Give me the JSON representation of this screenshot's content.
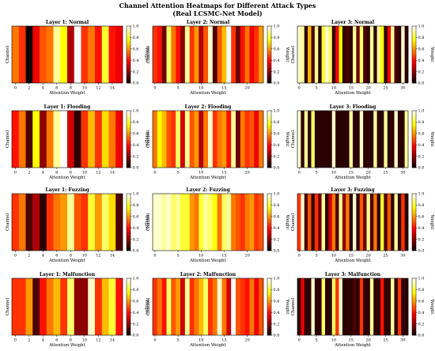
{
  "title": "Channel Attention Heatmaps for Different Attack Types",
  "subtitle": "(Real LCSMC-Net Model)",
  "chart_data": [
    {
      "type": "heatmap",
      "title": "Layer 1: Normal",
      "xlabel": "Attention Weight",
      "ylabel": "Channel",
      "colorbar_label": "Weight",
      "colormap": "hot",
      "vlim": [
        0,
        1
      ],
      "x_ticks": [
        0,
        2,
        4,
        6,
        8,
        10,
        12,
        14
      ],
      "colorbar_ticks": [
        "0.0",
        "0.2",
        "0.4",
        "0.6",
        "0.8",
        "1.0"
      ],
      "values": [
        0.55,
        0.45,
        0.0,
        0.35,
        0.5,
        0.55,
        0.9,
        0.75,
        0.25,
        1.0,
        0.45,
        0.55,
        0.4,
        0.8,
        0.4,
        0.35
      ]
    },
    {
      "type": "heatmap",
      "title": "Layer 2: Normal",
      "xlabel": "Attention Weight",
      "ylabel": "Channel",
      "colorbar_label": "Weight",
      "colormap": "hot",
      "vlim": [
        0,
        1
      ],
      "x_ticks": [
        0,
        5,
        10,
        15,
        20
      ],
      "colorbar_ticks": [
        "0.0",
        "0.2",
        "0.4",
        "0.6",
        "0.8",
        "1.0"
      ],
      "values": [
        0.45,
        0.4,
        0.15,
        0.85,
        0.55,
        0.4,
        0.2,
        0.9,
        0.45,
        0.6,
        0.25,
        0.5,
        0.95,
        0.1,
        0.5,
        0.65,
        1.0,
        0.45,
        0.15,
        0.4,
        0.55,
        0.35,
        0.45,
        0.6
      ]
    },
    {
      "type": "heatmap",
      "title": "Layer 3: Normal",
      "xlabel": "Attention Weight",
      "ylabel": "Channel",
      "colorbar_label": "Weight",
      "colormap": "hot",
      "vlim": [
        0,
        1
      ],
      "x_ticks": [
        0,
        5,
        10,
        15,
        20,
        25,
        30
      ],
      "colorbar_ticks": [
        "0.0",
        "0.2",
        "0.4",
        "0.6",
        "0.8",
        "1.0"
      ],
      "values": [
        0.95,
        0.9,
        0.05,
        0.65,
        0.1,
        0.9,
        0.05,
        0.8,
        0.95,
        0.85,
        0.05,
        0.35,
        0.75,
        0.05,
        0.1,
        0.05,
        0.9,
        0.15,
        0.85,
        0.1,
        0.05,
        0.9,
        0.05,
        0.9,
        0.75,
        0.05,
        0.35,
        0.9,
        0.1,
        0.05,
        0.95,
        0.05
      ]
    },
    {
      "type": "heatmap",
      "title": "Layer 1: Flooding",
      "xlabel": "Attention Weight",
      "ylabel": "Channel",
      "colorbar_label": "Weight",
      "colormap": "hot",
      "vlim": [
        0,
        1
      ],
      "x_ticks": [
        0,
        2,
        4,
        6,
        8,
        10,
        12,
        14
      ],
      "colorbar_ticks": [
        "0.0",
        "0.2",
        "0.4",
        "0.6",
        "0.8",
        "1.0"
      ],
      "values": [
        0.4,
        0.55,
        0.1,
        0.75,
        0.2,
        0.55,
        0.9,
        1.0,
        0.3,
        0.05,
        0.45,
        0.65,
        0.45,
        0.7,
        0.55,
        0.35
      ]
    },
    {
      "type": "heatmap",
      "title": "Layer 2: Flooding",
      "xlabel": "Attention Weight",
      "ylabel": "Channel",
      "colorbar_label": "Weight",
      "colormap": "hot",
      "vlim": [
        0,
        1
      ],
      "x_ticks": [
        0,
        5,
        10,
        15,
        20
      ],
      "colorbar_ticks": [
        "0.0",
        "0.2",
        "0.4",
        "0.6",
        "0.8",
        "1.0"
      ],
      "values": [
        0.55,
        0.75,
        0.65,
        0.5,
        0.45,
        0.85,
        0.3,
        0.9,
        0.5,
        0.6,
        0.25,
        0.55,
        0.95,
        0.45,
        0.55,
        0.6,
        0.4,
        0.9,
        0.15,
        0.55,
        0.45,
        0.5,
        0.35,
        0.55
      ]
    },
    {
      "type": "heatmap",
      "title": "Layer 3: Flooding",
      "xlabel": "Attention Weight",
      "ylabel": "Channel",
      "colorbar_label": "Weight",
      "colormap": "hot",
      "vlim": [
        0,
        1
      ],
      "x_ticks": [
        0,
        5,
        10,
        15,
        20,
        25,
        30
      ],
      "colorbar_ticks": [
        "0.0",
        "0.2",
        "0.4",
        "0.6",
        "0.8",
        "1.0"
      ],
      "values": [
        0.95,
        0.05,
        0.9,
        0.05,
        0.85,
        0.05,
        0.05,
        0.05,
        0.05,
        0.05,
        0.95,
        0.05,
        0.05,
        0.05,
        0.05,
        0.9,
        0.05,
        0.05,
        0.95,
        0.05,
        0.05,
        0.05,
        0.9,
        0.05,
        0.05,
        0.9,
        0.05,
        0.05,
        0.95,
        0.05,
        0.05,
        0.9
      ]
    },
    {
      "type": "heatmap",
      "title": "Layer 1: Fuzzing",
      "xlabel": "Attention Weight",
      "ylabel": "Channel",
      "colorbar_label": "Weight",
      "colormap": "hot",
      "vlim": [
        0,
        1
      ],
      "x_ticks": [
        0,
        2,
        4,
        6,
        8,
        10,
        12,
        14
      ],
      "colorbar_ticks": [
        "0.0",
        "0.2",
        "0.4",
        "0.6",
        "0.8",
        "1.0"
      ],
      "values": [
        0.45,
        0.55,
        0.1,
        0.25,
        0.05,
        0.45,
        0.55,
        0.6,
        0.9,
        0.5,
        0.45,
        0.8,
        0.6,
        0.85,
        0.7,
        0.1
      ]
    },
    {
      "type": "heatmap",
      "title": "Layer 2: Fuzzing",
      "xlabel": "Attention Weight",
      "ylabel": "Channel",
      "colorbar_label": "Weight",
      "colormap": "hot",
      "vlim": [
        0,
        1
      ],
      "x_ticks": [
        0,
        5,
        10,
        15,
        20
      ],
      "colorbar_ticks": [
        "0.0",
        "0.2",
        "0.4",
        "0.6",
        "0.8",
        "1.0"
      ],
      "values": [
        0.95,
        0.95,
        0.9,
        0.95,
        0.85,
        0.9,
        0.8,
        0.8,
        0.6,
        0.55,
        0.8,
        0.9,
        0.85,
        0.75,
        0.55,
        0.85,
        0.9,
        0.55,
        0.5,
        0.45,
        0.55,
        0.6,
        0.45,
        0.5
      ]
    },
    {
      "type": "heatmap",
      "title": "Layer 3: Fuzzing",
      "xlabel": "Attention Weight",
      "ylabel": "Channel",
      "colorbar_label": "Weight",
      "colormap": "hot",
      "vlim": [
        0,
        1
      ],
      "x_ticks": [
        0,
        5,
        10,
        15,
        20,
        25,
        30
      ],
      "colorbar_ticks": [
        "0.0",
        "0.2",
        "0.4",
        "0.6",
        "0.8",
        "1.0"
      ],
      "values": [
        0.45,
        0.95,
        0.1,
        0.5,
        0.05,
        0.45,
        0.15,
        0.9,
        0.05,
        0.3,
        0.55,
        0.1,
        0.9,
        0.2,
        0.55,
        0.05,
        0.95,
        0.05,
        0.5,
        0.15,
        0.9,
        0.1,
        0.55,
        0.05,
        0.8,
        0.1,
        0.5,
        0.05,
        0.9,
        0.05,
        0.45,
        0.05
      ]
    },
    {
      "type": "heatmap",
      "title": "Layer 1: Malfunction",
      "xlabel": "Attention Weight",
      "ylabel": "Channel",
      "colorbar_label": "Weight",
      "colormap": "hot",
      "vlim": [
        0,
        1
      ],
      "x_ticks": [
        0,
        2,
        4,
        6,
        8,
        10,
        12,
        14
      ],
      "colorbar_ticks": [
        "0.0",
        "0.2",
        "0.4",
        "0.6",
        "0.8",
        "1.0"
      ],
      "values": [
        0.45,
        0.45,
        0.6,
        0.1,
        0.4,
        0.55,
        0.65,
        0.45,
        0.85,
        0.2,
        0.2,
        0.95,
        0.45,
        0.65,
        0.8,
        0.4
      ]
    },
    {
      "type": "heatmap",
      "title": "Layer 2: Malfunction",
      "xlabel": "Attention Weight",
      "ylabel": "Channel",
      "colorbar_label": "Weight",
      "colormap": "hot",
      "vlim": [
        0,
        1
      ],
      "x_ticks": [
        0,
        5,
        10,
        15,
        20
      ],
      "colorbar_ticks": [
        "0.0",
        "0.2",
        "0.4",
        "0.6",
        "0.8",
        "1.0"
      ],
      "values": [
        0.45,
        0.55,
        0.4,
        0.85,
        0.5,
        0.6,
        0.3,
        0.9,
        0.45,
        0.55,
        0.65,
        0.85,
        0.45,
        0.55,
        0.95,
        0.55,
        0.3,
        1.0,
        0.5,
        0.45,
        0.4,
        0.55,
        0.35,
        0.5
      ]
    },
    {
      "type": "heatmap",
      "title": "Layer 3: Malfunction",
      "xlabel": "Attention Weight",
      "ylabel": "Channel",
      "colorbar_label": "Weight",
      "colormap": "hot",
      "vlim": [
        0,
        1
      ],
      "x_ticks": [
        0,
        5,
        10,
        15,
        20,
        25,
        30
      ],
      "colorbar_ticks": [
        "0.0",
        "0.2",
        "0.4",
        "0.6",
        "0.8",
        "1.0"
      ],
      "values": [
        0.05,
        0.35,
        0.05,
        0.05,
        0.95,
        0.05,
        0.05,
        0.85,
        0.05,
        0.05,
        0.85,
        0.45,
        0.95,
        0.05,
        0.05,
        0.05,
        0.1,
        0.05,
        0.45,
        0.05,
        0.05,
        0.9,
        0.05,
        0.05,
        0.4,
        0.05,
        0.05,
        0.9,
        0.05,
        0.45,
        0.05,
        0.05
      ]
    }
  ]
}
